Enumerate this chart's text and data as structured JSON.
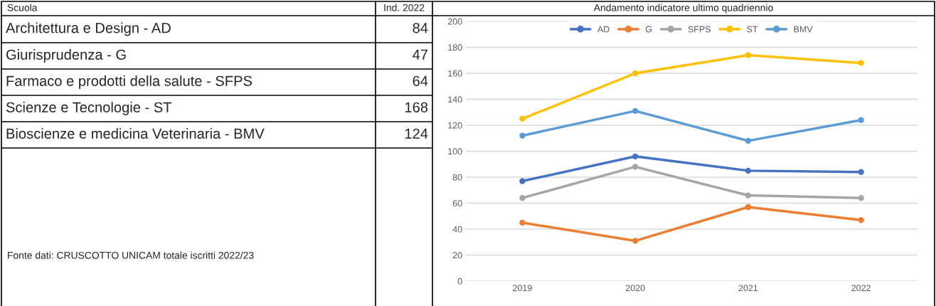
{
  "chart_data": {
    "type": "line",
    "title": "Andamento indicatore ultimo quadriennio",
    "categories": [
      "2019",
      "2020",
      "2021",
      "2022"
    ],
    "series": [
      {
        "name": "AD",
        "color": "#4472c4",
        "values": [
          77,
          96,
          85,
          84
        ]
      },
      {
        "name": "G",
        "color": "#ed7d31",
        "values": [
          45,
          31,
          57,
          47
        ]
      },
      {
        "name": "SFPS",
        "color": "#a5a5a5",
        "values": [
          64,
          88,
          66,
          64
        ]
      },
      {
        "name": "ST",
        "color": "#ffc000",
        "values": [
          125,
          160,
          174,
          168
        ]
      },
      {
        "name": "BMV",
        "color": "#5b9bd5",
        "values": [
          112,
          131,
          108,
          124
        ]
      }
    ],
    "ylim": [
      0,
      200
    ],
    "yticks": [
      0,
      20,
      40,
      60,
      80,
      100,
      120,
      140,
      160,
      180,
      200
    ],
    "grid": "y",
    "legend": "top",
    "marker": "circle",
    "line_style": "solid",
    "annotations": [
      "Scuola",
      "Ind. 2022",
      "Architettura e Design - AD",
      "84",
      "Giurisprudenza - G",
      "47",
      "Farmaco e prodotti della salute - SFPS",
      "64",
      "Scienze e Tecnologie - ST",
      "168",
      "Bioscienze e medicina Veterinaria - BMV",
      "124",
      "Fonte dati: CRUSCOTTO UNICAM totale iscritti 2022/23"
    ]
  }
}
